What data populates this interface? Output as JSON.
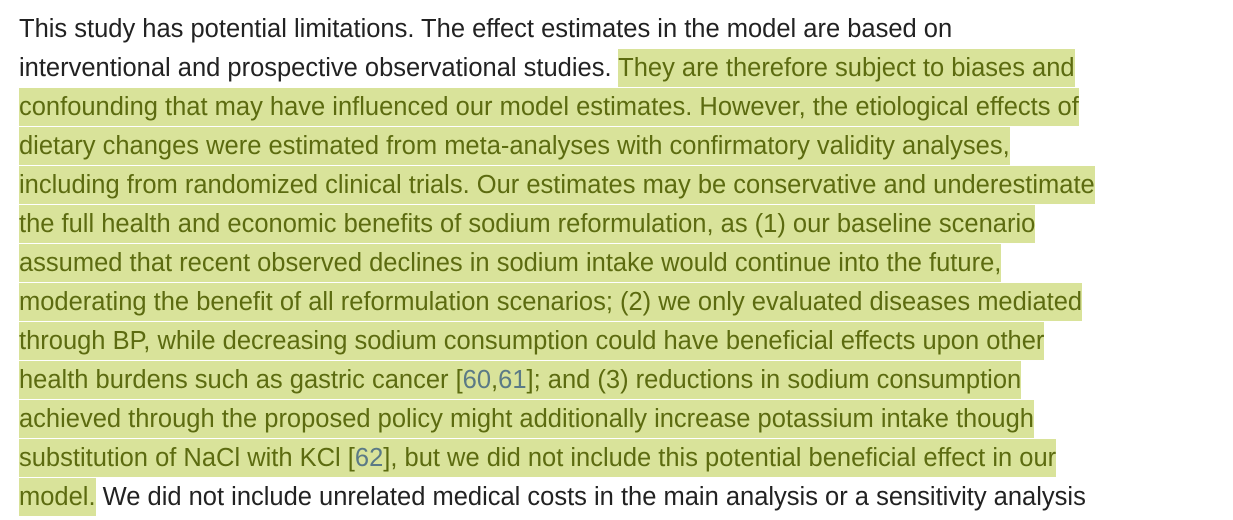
{
  "highlight_color": "#d9e39a",
  "lines": [
    [
      {
        "t": "This study has potential limitations. The effect estimates in the model are based on",
        "hl": false
      }
    ],
    [
      {
        "t": "interventional and prospective observational studies. ",
        "hl": false
      },
      {
        "t": "They are therefore subject to biases and",
        "hl": true
      }
    ],
    [
      {
        "t": "confounding that may have influenced our model estimates. However, the etiological effects of",
        "hl": true
      }
    ],
    [
      {
        "t": "dietary changes were estimated from meta-analyses with confirmatory validity analyses,",
        "hl": true
      }
    ],
    [
      {
        "t": "including from randomized clinical trials. Our estimates may be conservative and underestimate",
        "hl": true
      }
    ],
    [
      {
        "t": "the full health and economic benefits of sodium reformulation, as (1) our baseline scenario",
        "hl": true
      }
    ],
    [
      {
        "t": "assumed that recent observed declines in sodium intake would continue into the future,",
        "hl": true
      }
    ],
    [
      {
        "t": "moderating the benefit of all reformulation scenarios; (2) we only evaluated diseases mediated",
        "hl": true
      }
    ],
    [
      {
        "t": "through BP, while decreasing sodium consumption could have beneficial effects upon other",
        "hl": true
      }
    ],
    [
      {
        "t": "health burdens such as gastric cancer [",
        "hl": true
      },
      {
        "t": "60",
        "hl": true,
        "ref": true
      },
      {
        "t": ",",
        "hl": true
      },
      {
        "t": "61",
        "hl": true,
        "ref": true
      },
      {
        "t": "]; and (3) reductions in sodium consumption",
        "hl": true
      }
    ],
    [
      {
        "t": "achieved through the proposed policy might additionally increase potassium intake though",
        "hl": true
      }
    ],
    [
      {
        "t": "substitution of NaCl with KCl [",
        "hl": true
      },
      {
        "t": "62",
        "hl": true,
        "ref": true
      },
      {
        "t": "], but we did not include this potential beneficial effect in our",
        "hl": true
      }
    ],
    [
      {
        "t": "model.",
        "hl": true
      },
      {
        "t": " We did not include unrelated medical costs in the main analysis or a sensitivity analysis",
        "hl": false
      }
    ]
  ]
}
